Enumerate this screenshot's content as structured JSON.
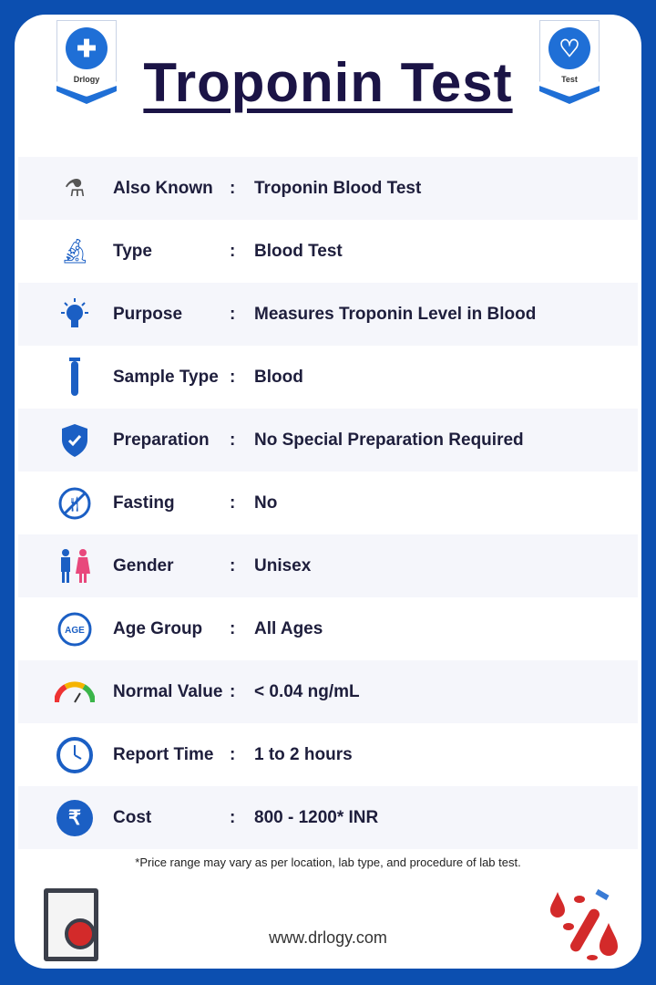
{
  "header": {
    "title": "Troponin Test",
    "left_badge": "Drlogy",
    "right_badge": "Test"
  },
  "rows": [
    {
      "icon": "flask-check-icon",
      "label": "Also Known",
      "value": "Troponin Blood Test"
    },
    {
      "icon": "microscope-icon",
      "label": "Type",
      "value": "Blood Test"
    },
    {
      "icon": "lightbulb-icon",
      "label": "Purpose",
      "value": "Measures Troponin Level in Blood"
    },
    {
      "icon": "test-tube-icon",
      "label": "Sample Type",
      "value": "Blood"
    },
    {
      "icon": "shield-check-icon",
      "label": "Preparation",
      "value": "No Special Preparation Required"
    },
    {
      "icon": "fork-knife-icon",
      "label": "Fasting",
      "value": "No"
    },
    {
      "icon": "male-female-icon",
      "label": "Gender",
      "value": "Unisex"
    },
    {
      "icon": "age-icon",
      "label": "Age Group",
      "value": "All Ages",
      "icon_text": "AGE"
    },
    {
      "icon": "gauge-icon",
      "label": "Normal Value",
      "value": "< 0.04 ng/mL"
    },
    {
      "icon": "clock-icon",
      "label": "Report Time",
      "value": "1 to 2 hours"
    },
    {
      "icon": "rupee-icon",
      "label": "Cost",
      "value": "800 - 1200* INR"
    }
  ],
  "colon": ":",
  "footer": {
    "note": "*Price range may vary as per location, lab type, and procedure of lab test.",
    "url": "www.drlogy.com"
  },
  "colors": {
    "border": "#0c4fb0",
    "accent": "#1f6fd6",
    "text": "#1e1e3c",
    "blood": "#d32a2a"
  }
}
